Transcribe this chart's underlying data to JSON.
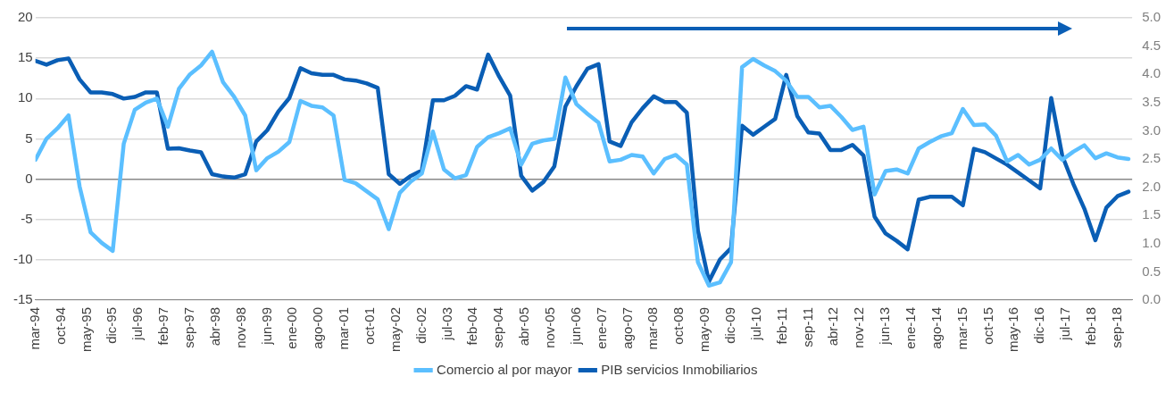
{
  "chart_data": {
    "type": "line",
    "x": [
      "1994-03",
      "1994-06",
      "1994-09",
      "1994-12",
      "1995-03",
      "1995-06",
      "1995-09",
      "1995-12",
      "1996-03",
      "1996-06",
      "1996-09",
      "1996-12",
      "1997-03",
      "1997-06",
      "1997-09",
      "1997-12",
      "1998-03",
      "1998-06",
      "1998-09",
      "1998-12",
      "1999-03",
      "1999-06",
      "1999-09",
      "1999-12",
      "2000-03",
      "2000-06",
      "2000-09",
      "2000-12",
      "2001-03",
      "2001-06",
      "2001-09",
      "2001-12",
      "2002-03",
      "2002-06",
      "2002-09",
      "2002-12",
      "2003-03",
      "2003-06",
      "2003-09",
      "2003-12",
      "2004-03",
      "2004-06",
      "2004-09",
      "2004-12",
      "2005-03",
      "2005-06",
      "2005-09",
      "2005-12",
      "2006-03",
      "2006-06",
      "2006-09",
      "2006-12",
      "2007-03",
      "2007-06",
      "2007-09",
      "2007-12",
      "2008-03",
      "2008-06",
      "2008-09",
      "2008-12",
      "2009-03",
      "2009-06",
      "2009-09",
      "2009-12",
      "2010-03",
      "2010-06",
      "2010-09",
      "2010-12",
      "2011-03",
      "2011-06",
      "2011-09",
      "2011-12",
      "2012-03",
      "2012-06",
      "2012-09",
      "2012-12",
      "2013-03",
      "2013-06",
      "2013-09",
      "2013-12",
      "2014-03",
      "2014-06",
      "2014-09",
      "2014-12",
      "2015-03",
      "2015-06",
      "2015-09",
      "2015-12",
      "2016-03",
      "2016-06",
      "2016-09",
      "2016-12",
      "2017-03",
      "2017-06",
      "2017-09",
      "2017-12",
      "2018-03",
      "2018-06",
      "2018-09",
      "2018-12"
    ],
    "series": [
      {
        "name": "Comercio al por mayor",
        "color": "#5bbfff",
        "values": [
          2.4,
          5.0,
          6.3,
          7.9,
          -0.9,
          -6.6,
          -7.9,
          -8.9,
          4.4,
          8.6,
          9.5,
          10.0,
          6.5,
          11.2,
          13.0,
          14.1,
          15.8,
          12.0,
          10.2,
          7.9,
          1.1,
          2.6,
          3.4,
          4.6,
          9.7,
          9.1,
          8.9,
          7.9,
          -0.1,
          -0.5,
          -1.5,
          -2.5,
          -6.2,
          -1.7,
          -0.3,
          0.7,
          5.9,
          1.2,
          0.1,
          0.5,
          4.0,
          5.2,
          5.7,
          6.3,
          1.8,
          4.4,
          4.8,
          5.0,
          12.6,
          9.3,
          8.1,
          7.0,
          2.2,
          2.4,
          3.0,
          2.8,
          0.7,
          2.5,
          3.0,
          1.8,
          -10.3,
          -13.2,
          -12.8,
          -10.3,
          13.9,
          14.9,
          14.1,
          13.4,
          12.2,
          10.2,
          10.2,
          8.9,
          9.1,
          7.7,
          6.1,
          6.5,
          -1.9,
          1.0,
          1.2,
          0.7,
          3.8,
          4.6,
          5.3,
          5.7,
          8.7,
          6.7,
          6.8,
          5.4,
          2.2,
          3.0,
          1.8,
          2.4,
          3.8,
          2.4,
          3.4,
          4.2,
          2.6,
          3.2,
          2.7,
          2.5
        ]
      },
      {
        "name": "PIB servicios Inmobiliarios",
        "color": "#0a5eb5",
        "axis": "y2",
        "values": [
          4.24,
          4.17,
          4.25,
          4.28,
          3.91,
          3.68,
          3.68,
          3.65,
          3.57,
          3.6,
          3.68,
          3.68,
          2.68,
          2.69,
          2.65,
          2.62,
          2.23,
          2.19,
          2.17,
          2.23,
          2.81,
          3.01,
          3.34,
          3.58,
          4.11,
          4.02,
          3.99,
          3.99,
          3.91,
          3.89,
          3.84,
          3.76,
          2.23,
          2.06,
          2.2,
          2.3,
          3.54,
          3.54,
          3.62,
          3.79,
          3.73,
          4.35,
          3.96,
          3.62,
          2.2,
          1.94,
          2.09,
          2.37,
          3.43,
          3.79,
          4.1,
          4.18,
          2.81,
          2.73,
          3.15,
          3.4,
          3.61,
          3.51,
          3.51,
          3.32,
          1.23,
          0.33,
          0.72,
          0.92,
          3.09,
          2.93,
          3.07,
          3.21,
          3.99,
          3.26,
          2.97,
          2.95,
          2.66,
          2.66,
          2.75,
          2.56,
          1.48,
          1.18,
          1.05,
          0.9,
          1.78,
          1.83,
          1.83,
          1.83,
          1.68,
          2.68,
          2.62,
          2.51,
          2.4,
          2.26,
          2.12,
          1.98,
          3.58,
          2.56,
          2.06,
          1.62,
          1.06,
          1.64,
          1.84,
          1.92
        ]
      }
    ],
    "xlim": [
      "1994-03",
      "2019-01"
    ],
    "xticks": [
      {
        "value": "1994-03",
        "label": "mar-94"
      },
      {
        "value": "1994-10",
        "label": "oct-94"
      },
      {
        "value": "1995-05",
        "label": "may-95"
      },
      {
        "value": "1995-12",
        "label": "dic-95"
      },
      {
        "value": "1996-07",
        "label": "jul-96"
      },
      {
        "value": "1997-02",
        "label": "feb-97"
      },
      {
        "value": "1997-09",
        "label": "sep-97"
      },
      {
        "value": "1998-04",
        "label": "abr-98"
      },
      {
        "value": "1998-11",
        "label": "nov-98"
      },
      {
        "value": "1999-06",
        "label": "jun-99"
      },
      {
        "value": "2000-01",
        "label": "ene-00"
      },
      {
        "value": "2000-08",
        "label": "ago-00"
      },
      {
        "value": "2001-03",
        "label": "mar-01"
      },
      {
        "value": "2001-10",
        "label": "oct-01"
      },
      {
        "value": "2002-05",
        "label": "may-02"
      },
      {
        "value": "2002-12",
        "label": "dic-02"
      },
      {
        "value": "2003-07",
        "label": "jul-03"
      },
      {
        "value": "2004-02",
        "label": "feb-04"
      },
      {
        "value": "2004-09",
        "label": "sep-04"
      },
      {
        "value": "2005-04",
        "label": "abr-05"
      },
      {
        "value": "2005-11",
        "label": "nov-05"
      },
      {
        "value": "2006-06",
        "label": "jun-06"
      },
      {
        "value": "2007-01",
        "label": "ene-07"
      },
      {
        "value": "2007-08",
        "label": "ago-07"
      },
      {
        "value": "2008-03",
        "label": "mar-08"
      },
      {
        "value": "2008-10",
        "label": "oct-08"
      },
      {
        "value": "2009-05",
        "label": "may-09"
      },
      {
        "value": "2009-12",
        "label": "dic-09"
      },
      {
        "value": "2010-07",
        "label": "jul-10"
      },
      {
        "value": "2011-02",
        "label": "feb-11"
      },
      {
        "value": "2011-09",
        "label": "sep-11"
      },
      {
        "value": "2012-04",
        "label": "abr-12"
      },
      {
        "value": "2012-11",
        "label": "nov-12"
      },
      {
        "value": "2013-06",
        "label": "jun-13"
      },
      {
        "value": "2014-01",
        "label": "ene-14"
      },
      {
        "value": "2014-08",
        "label": "ago-14"
      },
      {
        "value": "2015-03",
        "label": "mar-15"
      },
      {
        "value": "2015-10",
        "label": "oct-15"
      },
      {
        "value": "2016-05",
        "label": "may-16"
      },
      {
        "value": "2016-12",
        "label": "dic-16"
      },
      {
        "value": "2017-07",
        "label": "jul-17"
      },
      {
        "value": "2018-02",
        "label": "feb-18"
      },
      {
        "value": "2018-09",
        "label": "sep-18"
      }
    ],
    "ylim": [
      -15,
      20
    ],
    "yticks": [
      -15,
      -10,
      -5,
      0,
      5,
      10,
      15,
      20
    ],
    "y2lim": [
      0,
      5
    ],
    "y2ticks": [
      {
        "value": 0,
        "label": "0.0"
      },
      0.5,
      {
        "value": 1,
        "label": "1.0"
      },
      1.5,
      {
        "value": 2,
        "label": "2.0"
      },
      2.5,
      {
        "value": 3,
        "label": "3.0"
      },
      3.5,
      {
        "value": 4,
        "label": "4.0"
      },
      4.5,
      {
        "value": 5,
        "label": "5.0"
      }
    ],
    "grid": "y",
    "legend": "bottom",
    "marker": "none",
    "line_style": "solid"
  }
}
